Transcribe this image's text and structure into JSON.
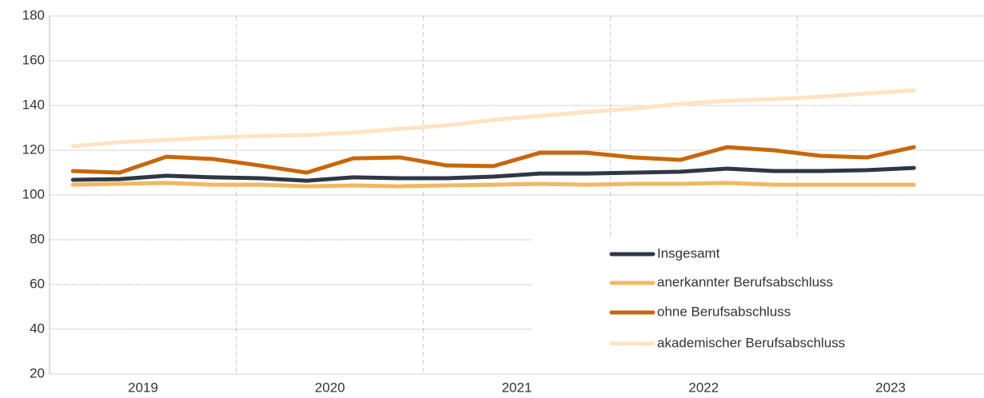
{
  "chart_data": {
    "type": "line",
    "x": [
      2019.125,
      2019.375,
      2019.625,
      2019.875,
      2020.125,
      2020.375,
      2020.625,
      2020.875,
      2021.125,
      2021.375,
      2021.625,
      2021.875,
      2022.125,
      2022.375,
      2022.625,
      2022.875,
      2023.125,
      2023.375,
      2023.625
    ],
    "xlim": [
      2019,
      2024
    ],
    "xticks": [
      {
        "value": 2019.5,
        "label": "2019"
      },
      {
        "value": 2020.5,
        "label": "2020"
      },
      {
        "value": 2021.5,
        "label": "2021"
      },
      {
        "value": 2022.5,
        "label": "2022"
      },
      {
        "value": 2023.5,
        "label": "2023"
      }
    ],
    "ylim": [
      20,
      180
    ],
    "yticks": [
      20,
      40,
      60,
      80,
      100,
      120,
      140,
      160,
      180
    ],
    "grid": true,
    "legend": "lower right",
    "series": [
      {
        "name": "Insgesamt",
        "color": "#2f3746",
        "values": [
          106.8,
          107.1,
          108.6,
          107.9,
          107.5,
          106.4,
          107.9,
          107.5,
          107.5,
          108.2,
          109.6,
          109.6,
          110.0,
          110.4,
          111.8,
          110.7,
          110.7,
          111.1,
          112.1
        ]
      },
      {
        "name": "anerkannter Berufsabschluss",
        "color": "#f0b862",
        "values": [
          104.6,
          105.0,
          105.4,
          104.6,
          104.6,
          103.9,
          104.3,
          103.9,
          104.3,
          104.6,
          105.0,
          104.6,
          105.0,
          105.0,
          105.4,
          104.6,
          104.6,
          104.6,
          104.6
        ]
      },
      {
        "name": "ohne Berufsabschluss",
        "color": "#c8660c",
        "values": [
          110.7,
          110.0,
          117.1,
          116.1,
          113.2,
          110.0,
          116.4,
          116.8,
          113.2,
          112.9,
          118.9,
          118.9,
          116.8,
          115.7,
          121.4,
          120.0,
          117.5,
          116.8,
          121.4
        ]
      },
      {
        "name": "akademischer Berufsabschluss",
        "color": "#fde4c2",
        "values": [
          121.8,
          123.6,
          124.6,
          125.7,
          126.4,
          126.8,
          127.9,
          129.6,
          131.1,
          133.6,
          135.4,
          137.1,
          138.6,
          140.7,
          142.1,
          142.9,
          143.9,
          145.4,
          146.8
        ]
      }
    ]
  }
}
